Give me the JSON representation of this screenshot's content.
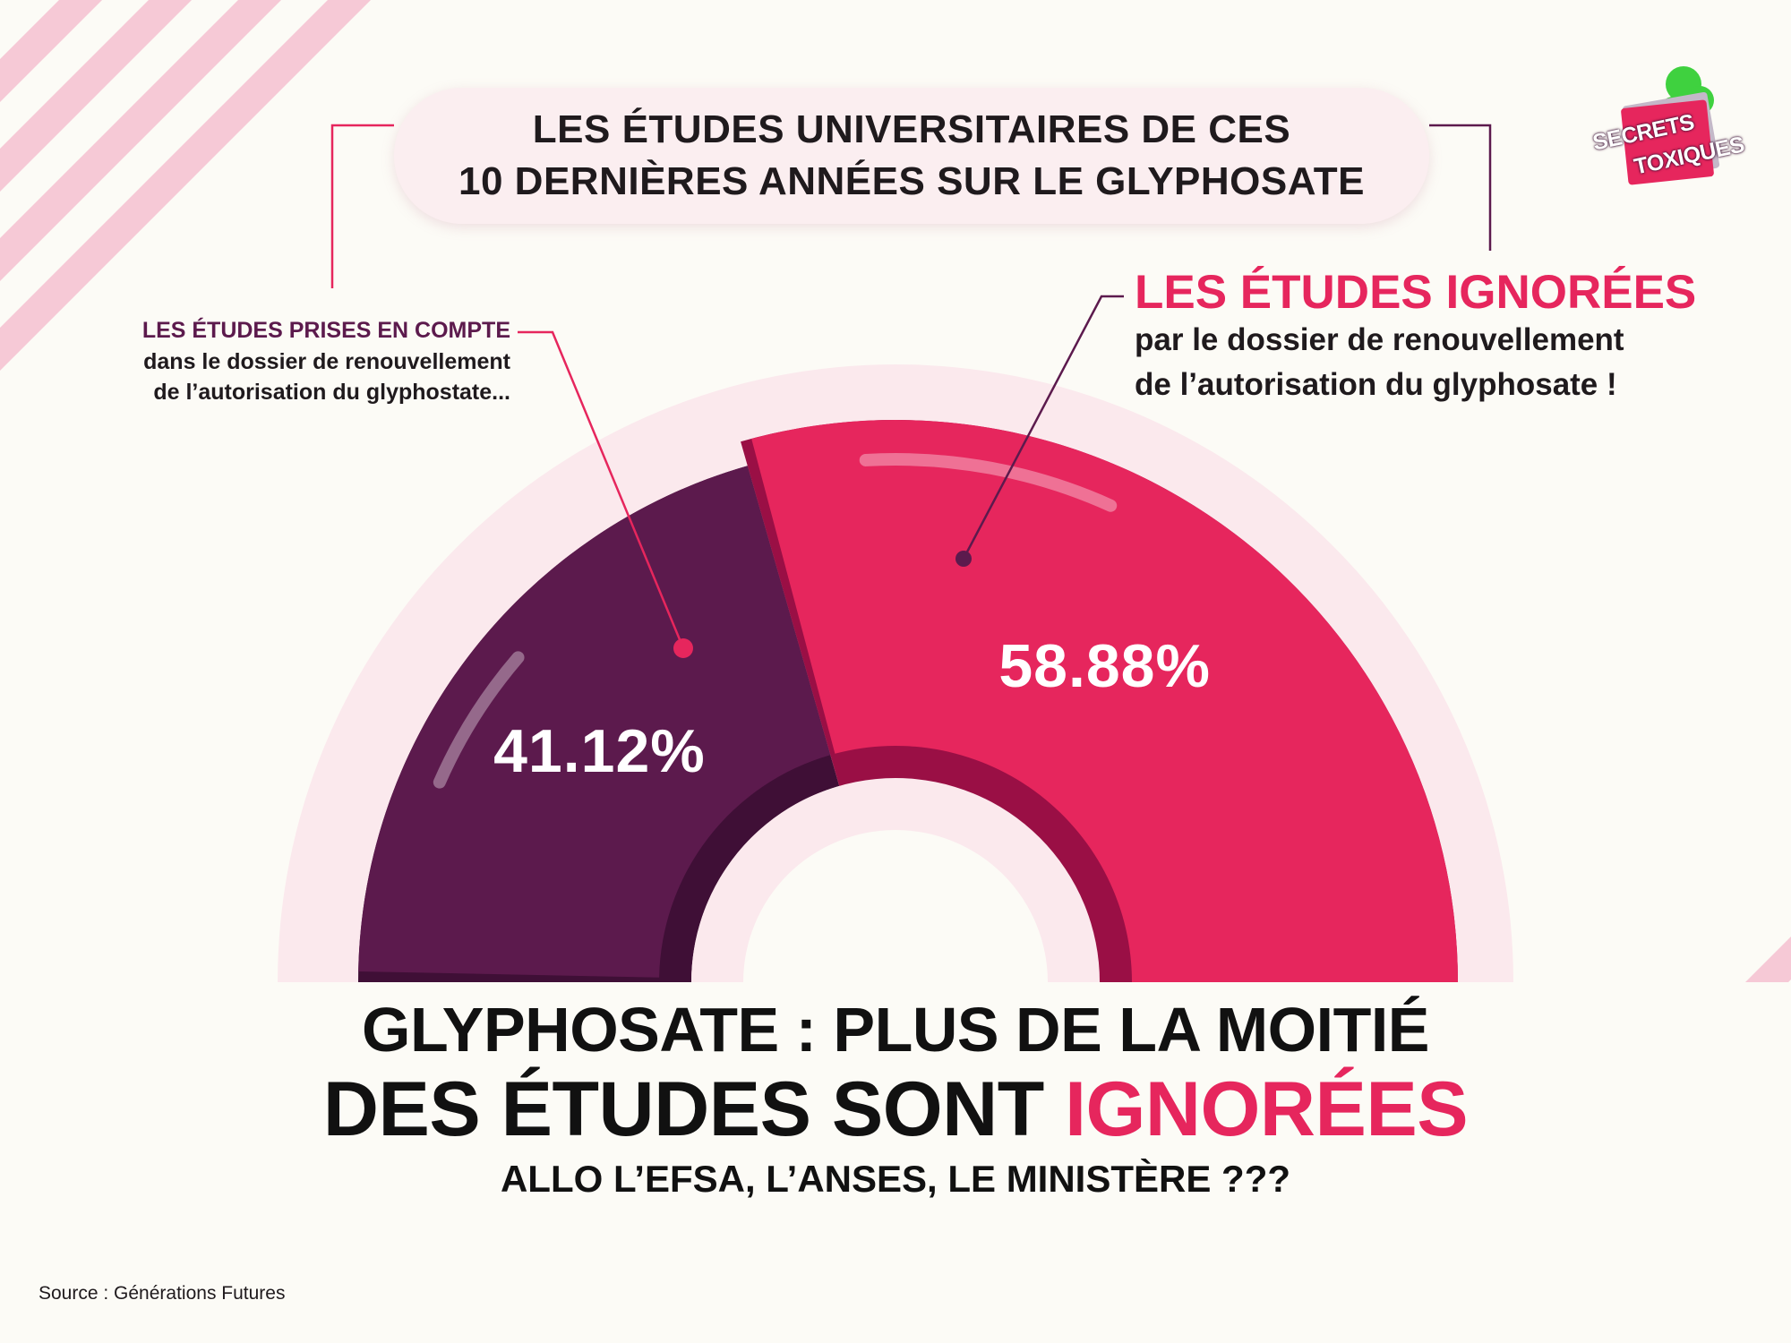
{
  "header": {
    "line1": "LES ÉTUDES UNIVERSITAIRES DE CES",
    "line2": "10 DERNIÈRES ANNÉES SUR LE GLYPHOSATE"
  },
  "logo": {
    "line1": "SECRETS",
    "line2": "TOXIQUES"
  },
  "left_label": {
    "title": "LES ÉTUDES PRISES EN COMPTE",
    "line1": "dans le dossier de renouvellement",
    "line2": "de l’autorisation du glyphostate..."
  },
  "right_label": {
    "title": "LES ÉTUDES IGNORÉES",
    "line1": "par le dossier de renouvellement",
    "line2": "de l’autorisation du glyphosate !"
  },
  "headline": {
    "line1": "GLYPHOSATE : PLUS DE LA MOITIÉ",
    "line2_start": "DES ÉTUDES SONT ",
    "line2_accent": "IGNORÉES",
    "line3": "ALLO L’EFSA, L’ANSES, LE MINISTÈRE ???"
  },
  "source": "Source : Générations Futures",
  "chart_data": {
    "type": "pie",
    "variant": "half-donut",
    "categories": [
      "LES ÉTUDES PRISES EN COMPTE",
      "LES ÉTUDES IGNORÉES"
    ],
    "values": [
      41.12,
      58.88
    ],
    "labels": [
      "41.12%",
      "58.88%"
    ],
    "colors": [
      "#5c1a4d",
      "#e6265d"
    ],
    "shadow_colors": [
      "#3f0f36",
      "#9a0f45"
    ]
  },
  "colors": {
    "background": "#fcfbf6",
    "stripes": "#f6c9d6",
    "accent": "#e6265d",
    "purple": "#5c1a4d",
    "text": "#1f1a1d"
  }
}
